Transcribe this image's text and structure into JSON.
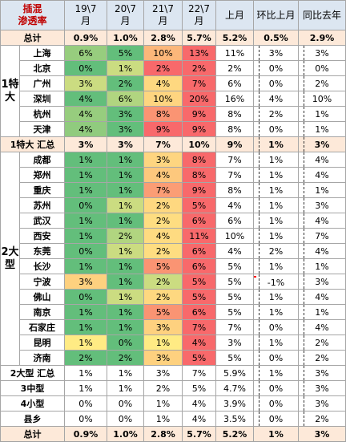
{
  "header": {
    "corner": [
      "插混",
      "渗透率"
    ],
    "columns": [
      [
        "19\\7",
        "月"
      ],
      [
        "20\\7",
        "月"
      ],
      [
        "21\\7",
        "月"
      ],
      [
        "22\\7",
        "月"
      ],
      [
        "上月"
      ],
      [
        "环比上月"
      ],
      [
        "同比去年"
      ]
    ]
  },
  "top_total": {
    "label": "总计",
    "cells": [
      "0.9%",
      "1.0%",
      "2.8%",
      "5.7%",
      "5.2%",
      "0.5%",
      "2.9%"
    ]
  },
  "groups": [
    {
      "label": "1特大",
      "cities": [
        {
          "label": "上海",
          "cells": [
            "6%",
            "5%",
            "10%",
            "13%",
            "11%",
            "3%",
            "3%"
          ]
        },
        {
          "label": "北京",
          "cells": [
            "0%",
            "1%",
            "2%",
            "2%",
            "2%",
            "0%",
            "0%"
          ]
        },
        {
          "label": "广州",
          "cells": [
            "3%",
            "2%",
            "4%",
            "7%",
            "6%",
            "0%",
            "2%"
          ]
        },
        {
          "label": "深圳",
          "cells": [
            "4%",
            "6%",
            "10%",
            "20%",
            "16%",
            "4%",
            "10%"
          ]
        },
        {
          "label": "杭州",
          "cells": [
            "4%",
            "3%",
            "8%",
            "9%",
            "8%",
            "2%",
            "1%"
          ]
        },
        {
          "label": "天津",
          "cells": [
            "4%",
            "3%",
            "9%",
            "9%",
            "8%",
            "0%",
            "1%"
          ]
        }
      ],
      "summary": {
        "label": "1特大 汇总",
        "cells": [
          "3%",
          "3%",
          "7%",
          "10%",
          "9%",
          "1%",
          "3%"
        ]
      }
    },
    {
      "label": "2大型",
      "cities": [
        {
          "label": "成都",
          "cells": [
            "1%",
            "1%",
            "3%",
            "8%",
            "7%",
            "1%",
            "4%"
          ]
        },
        {
          "label": "郑州",
          "cells": [
            "1%",
            "1%",
            "4%",
            "8%",
            "7%",
            "1%",
            "4%"
          ]
        },
        {
          "label": "重庆",
          "cells": [
            "1%",
            "1%",
            "7%",
            "9%",
            "8%",
            "1%",
            "1%"
          ]
        },
        {
          "label": "苏州",
          "cells": [
            "0%",
            "1%",
            "2%",
            "5%",
            "4%",
            "1%",
            "3%"
          ]
        },
        {
          "label": "武汉",
          "cells": [
            "1%",
            "1%",
            "2%",
            "6%",
            "6%",
            "1%",
            "4%"
          ]
        },
        {
          "label": "西安",
          "cells": [
            "1%",
            "2%",
            "4%",
            "11%",
            "10%",
            "1%",
            "7%"
          ]
        },
        {
          "label": "东莞",
          "cells": [
            "0%",
            "1%",
            "2%",
            "6%",
            "4%",
            "2%",
            "4%"
          ]
        },
        {
          "label": "长沙",
          "cells": [
            "1%",
            "1%",
            "5%",
            "6%",
            "5%",
            "1%",
            "1%"
          ]
        },
        {
          "label": "宁波",
          "cells": [
            "3%",
            "1%",
            "2%",
            "5%",
            "5%",
            "-1%",
            "3%"
          ]
        },
        {
          "label": "佛山",
          "cells": [
            "0%",
            "1%",
            "2%",
            "5%",
            "5%",
            "1%",
            "4%"
          ]
        },
        {
          "label": "南京",
          "cells": [
            "1%",
            "1%",
            "5%",
            "6%",
            "5%",
            "1%",
            "1%"
          ]
        },
        {
          "label": "石家庄",
          "cells": [
            "1%",
            "1%",
            "3%",
            "7%",
            "7%",
            "0%",
            "4%"
          ]
        },
        {
          "label": "昆明",
          "cells": [
            "1%",
            "0%",
            "1%",
            "4%",
            "3%",
            "1%",
            "2%"
          ]
        },
        {
          "label": "济南",
          "cells": [
            "2%",
            "2%",
            "3%",
            "5%",
            "5%",
            "0%",
            "2%"
          ]
        }
      ],
      "summary": {
        "label": "2大型 汇总",
        "cells": [
          "1%",
          "1%",
          "3%",
          "7%",
          "5.9%",
          "1%",
          "3%"
        ]
      }
    }
  ],
  "tiers": [
    {
      "label": "3中型",
      "cells": [
        "1%",
        "1%",
        "2%",
        "5%",
        "4.7%",
        "0%",
        "3%"
      ]
    },
    {
      "label": "4小型",
      "cells": [
        "0%",
        "0%",
        "1%",
        "4%",
        "3.9%",
        "0%",
        "3%"
      ]
    },
    {
      "label": "县乡",
      "cells": [
        "0%",
        "0%",
        "1%",
        "4%",
        "3.5%",
        "0%",
        "2%"
      ]
    }
  ],
  "bottom_total": {
    "label": "总计",
    "cells": [
      "0.9%",
      "1.0%",
      "2.8%",
      "5.7%",
      "5.2%",
      "1%",
      "3%"
    ]
  }
}
